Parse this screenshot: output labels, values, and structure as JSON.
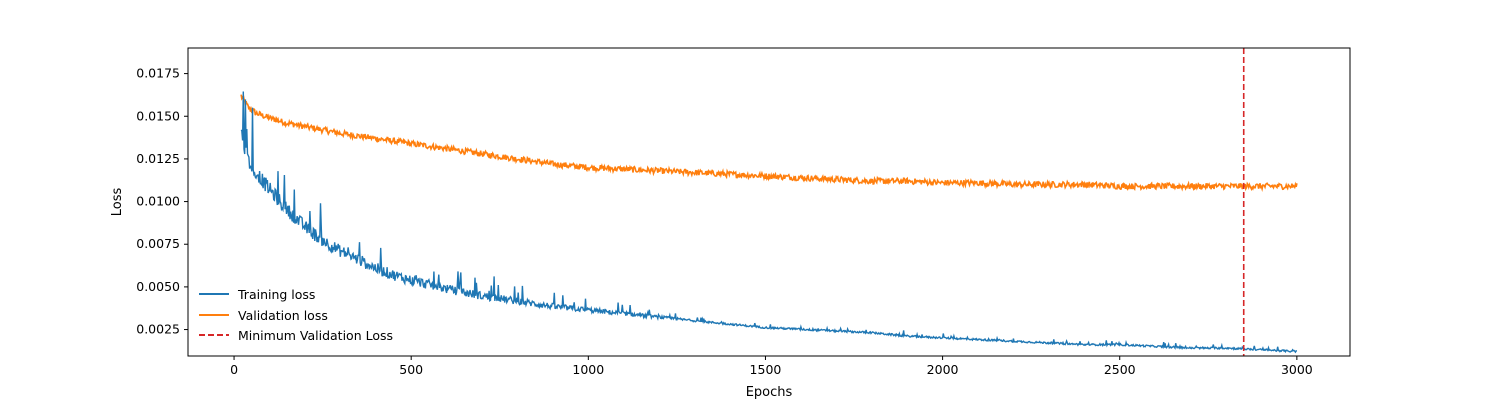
{
  "chart_data": {
    "type": "line",
    "title": "",
    "xlabel": "Epochs",
    "ylabel": "Loss",
    "xlim": [
      -130,
      3150
    ],
    "ylim": [
      0.00095,
      0.019
    ],
    "xticks": [
      0,
      500,
      1000,
      1500,
      2000,
      2500,
      3000
    ],
    "xtick_labels": [
      "0",
      "500",
      "1000",
      "1500",
      "2000",
      "2500",
      "3000"
    ],
    "yticks": [
      0.0025,
      0.005,
      0.0075,
      0.01,
      0.0125,
      0.015,
      0.0175
    ],
    "ytick_labels": [
      "0.0025",
      "0.0050",
      "0.0075",
      "0.0100",
      "0.0125",
      "0.0150",
      "0.0175"
    ],
    "grid": false,
    "legend_position": "lower-left",
    "series": [
      {
        "name": "Training loss",
        "color": "#1f77b4",
        "x": [
          20,
          30,
          40,
          60,
          80,
          100,
          125,
          150,
          175,
          200,
          250,
          300,
          350,
          400,
          450,
          500,
          600,
          700,
          800,
          900,
          1000,
          1100,
          1200,
          1300,
          1400,
          1500,
          1600,
          1700,
          1800,
          1900,
          2000,
          2100,
          2200,
          2300,
          2400,
          2500,
          2600,
          2700,
          2800,
          2900,
          3000
        ],
        "y": [
          0.0145,
          0.0128,
          0.0122,
          0.0117,
          0.0111,
          0.0106,
          0.01,
          0.0094,
          0.0089,
          0.0084,
          0.0076,
          0.007,
          0.0065,
          0.006,
          0.0056,
          0.0053,
          0.0048,
          0.0044,
          0.0041,
          0.0038,
          0.0036,
          0.0034,
          0.0032,
          0.003,
          0.0028,
          0.0026,
          0.0025,
          0.0024,
          0.0023,
          0.0021,
          0.002,
          0.0019,
          0.0018,
          0.0017,
          0.0016,
          0.0016,
          0.0015,
          0.0014,
          0.0014,
          0.0013,
          0.0012
        ]
      },
      {
        "name": "Validation loss",
        "color": "#ff7f0e",
        "x": [
          20,
          40,
          60,
          100,
          150,
          200,
          300,
          400,
          500,
          600,
          700,
          800,
          900,
          1000,
          1100,
          1200,
          1300,
          1400,
          1500,
          1600,
          1700,
          1800,
          1900,
          2000,
          2100,
          2200,
          2300,
          2400,
          2500,
          2600,
          2700,
          2800,
          2900,
          3000
        ],
        "y": [
          0.0162,
          0.0155,
          0.0152,
          0.0149,
          0.0146,
          0.0144,
          0.014,
          0.0137,
          0.0134,
          0.0131,
          0.0128,
          0.0125,
          0.0122,
          0.012,
          0.0119,
          0.0118,
          0.0117,
          0.0116,
          0.0115,
          0.0114,
          0.0113,
          0.0112,
          0.0112,
          0.0111,
          0.0111,
          0.011,
          0.011,
          0.011,
          0.0109,
          0.0109,
          0.0109,
          0.0109,
          0.0109,
          0.0109
        ]
      }
    ],
    "vline": {
      "name": "Minimum Validation Loss",
      "x": 2850,
      "color": "#d62728",
      "style": "dashed"
    }
  }
}
